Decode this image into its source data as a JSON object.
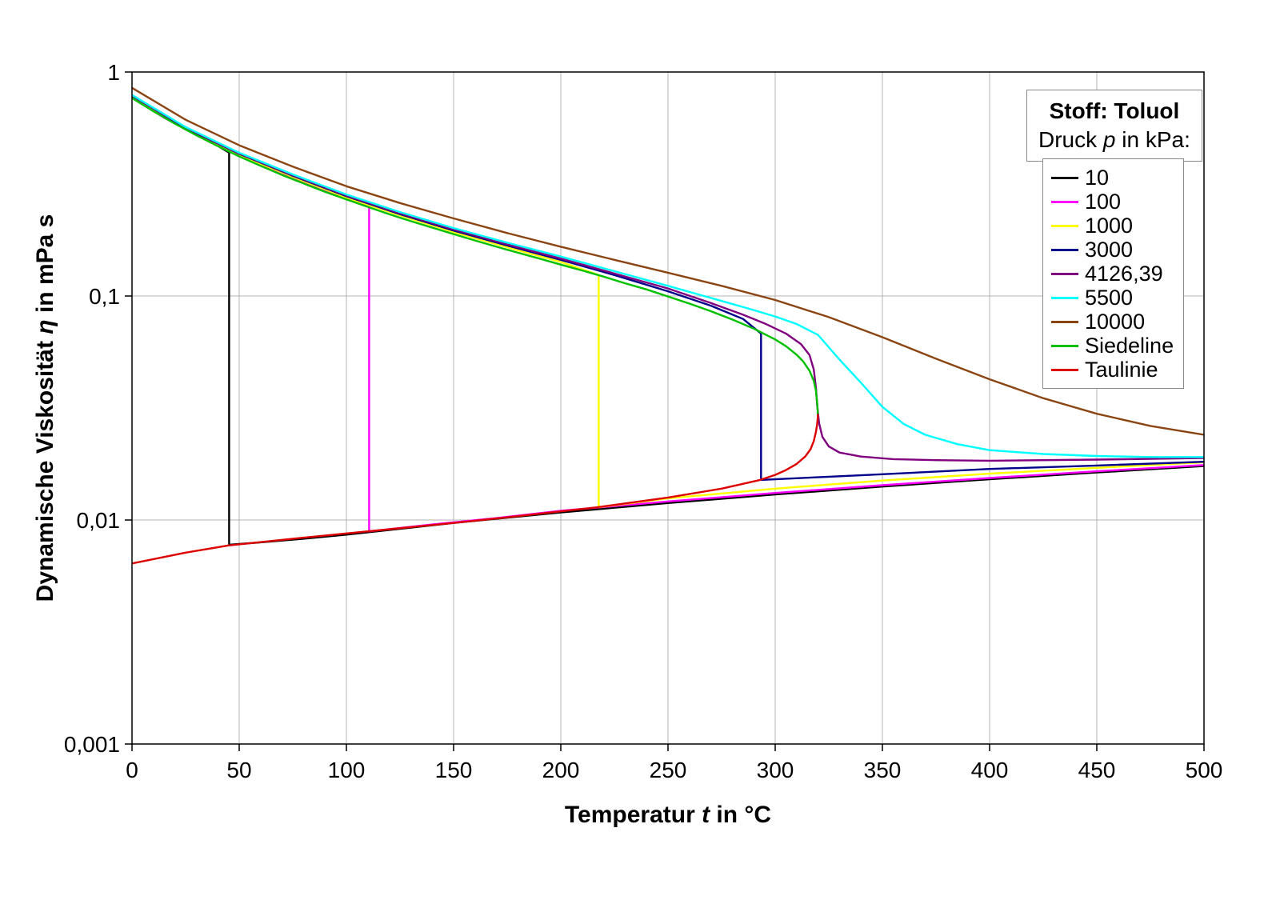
{
  "page": {
    "background": "#ffffff"
  },
  "legend": {
    "title_line1": "Stoff: Toluol",
    "title_line2_segments": [
      {
        "text": "Druck "
      },
      {
        "text": "p",
        "italic": true
      },
      {
        "text": " in kPa:"
      }
    ]
  },
  "chart_data": {
    "type": "line",
    "title": "",
    "xlabel_segments": [
      {
        "text": "Temperatur "
      },
      {
        "text": "t",
        "italic": true
      },
      {
        "text": " in °C"
      }
    ],
    "ylabel_segments": [
      {
        "text": "Dynamische Viskosität "
      },
      {
        "text": "η",
        "italic": true
      },
      {
        "text": " in mPa s"
      }
    ],
    "xlim": [
      0,
      500
    ],
    "ylim": [
      0.001,
      1
    ],
    "y_scale": "log",
    "x_ticks": [
      0,
      50,
      100,
      150,
      200,
      250,
      300,
      350,
      400,
      450,
      500
    ],
    "y_ticks": [
      {
        "v": 1,
        "label": "1"
      },
      {
        "v": 0.1,
        "label": "0,1"
      },
      {
        "v": 0.01,
        "label": "0,01"
      },
      {
        "v": 0.001,
        "label": "0,001"
      }
    ],
    "grid": true,
    "grid_color": "#b3b3b3",
    "frame_color": "#000000",
    "legend_position": "top-right",
    "series": [
      {
        "name": "10",
        "color": "#000000",
        "points": [
          [
            0,
            0.768
          ],
          [
            10,
            0.67
          ],
          [
            20,
            0.59
          ],
          [
            30,
            0.523
          ],
          [
            40,
            0.468
          ],
          [
            45.3,
            0.436
          ],
          [
            45.3,
            0.00775
          ],
          [
            60,
            0.00795
          ],
          [
            80,
            0.00825
          ],
          [
            100,
            0.0086
          ],
          [
            150,
            0.0097
          ],
          [
            200,
            0.0108
          ],
          [
            250,
            0.0119
          ],
          [
            300,
            0.013
          ],
          [
            350,
            0.0141
          ],
          [
            400,
            0.0152
          ],
          [
            450,
            0.0163
          ],
          [
            500,
            0.0174
          ]
        ]
      },
      {
        "name": "100",
        "color": "#ff00ff",
        "points": [
          [
            0,
            0.77
          ],
          [
            15,
            0.625
          ],
          [
            30,
            0.525
          ],
          [
            45,
            0.448
          ],
          [
            60,
            0.385
          ],
          [
            75,
            0.336
          ],
          [
            90,
            0.296
          ],
          [
            100,
            0.273
          ],
          [
            110.6,
            0.252
          ],
          [
            110.6,
            0.0089
          ],
          [
            140,
            0.00955
          ],
          [
            170,
            0.0102
          ],
          [
            200,
            0.011
          ],
          [
            250,
            0.0121
          ],
          [
            300,
            0.0132
          ],
          [
            350,
            0.0143
          ],
          [
            400,
            0.0154
          ],
          [
            450,
            0.0165
          ],
          [
            500,
            0.0176
          ]
        ]
      },
      {
        "name": "1000",
        "color": "#ffff00",
        "points": [
          [
            0,
            0.776
          ],
          [
            25,
            0.557
          ],
          [
            50,
            0.426
          ],
          [
            75,
            0.34
          ],
          [
            100,
            0.275
          ],
          [
            125,
            0.229
          ],
          [
            150,
            0.193
          ],
          [
            175,
            0.165
          ],
          [
            200,
            0.142
          ],
          [
            217.7,
            0.124
          ],
          [
            217.7,
            0.0114
          ],
          [
            250,
            0.0125
          ],
          [
            300,
            0.0138
          ],
          [
            350,
            0.015
          ],
          [
            400,
            0.0161
          ],
          [
            450,
            0.0171
          ],
          [
            500,
            0.0181
          ]
        ]
      },
      {
        "name": "3000",
        "color": "#00008b",
        "points": [
          [
            0,
            0.783
          ],
          [
            25,
            0.562
          ],
          [
            50,
            0.431
          ],
          [
            75,
            0.344
          ],
          [
            100,
            0.279
          ],
          [
            125,
            0.232
          ],
          [
            150,
            0.196
          ],
          [
            175,
            0.168
          ],
          [
            200,
            0.145
          ],
          [
            225,
            0.124
          ],
          [
            250,
            0.105
          ],
          [
            270,
            0.0905
          ],
          [
            285,
            0.079
          ],
          [
            293.4,
            0.068
          ],
          [
            293.4,
            0.0151
          ],
          [
            300,
            0.0152
          ],
          [
            325,
            0.0156
          ],
          [
            350,
            0.016
          ],
          [
            400,
            0.0169
          ],
          [
            450,
            0.0175
          ],
          [
            500,
            0.0182
          ]
        ]
      },
      {
        "name": "4126,39",
        "color": "#800080",
        "points": [
          [
            0,
            0.786
          ],
          [
            25,
            0.565
          ],
          [
            50,
            0.433
          ],
          [
            75,
            0.346
          ],
          [
            100,
            0.281
          ],
          [
            125,
            0.234
          ],
          [
            150,
            0.198
          ],
          [
            175,
            0.17
          ],
          [
            200,
            0.147
          ],
          [
            225,
            0.126
          ],
          [
            250,
            0.108
          ],
          [
            270,
            0.093
          ],
          [
            285,
            0.0825
          ],
          [
            295,
            0.0755
          ],
          [
            305,
            0.068
          ],
          [
            312,
            0.061
          ],
          [
            316,
            0.0545
          ],
          [
            318,
            0.047
          ],
          [
            319,
            0.039
          ],
          [
            319.6,
            0.0325
          ],
          [
            320.5,
            0.027
          ],
          [
            322,
            0.0235
          ],
          [
            325,
            0.0213
          ],
          [
            330,
            0.02
          ],
          [
            340,
            0.0192
          ],
          [
            355,
            0.0187
          ],
          [
            375,
            0.0185
          ],
          [
            400,
            0.0184
          ],
          [
            450,
            0.0186
          ],
          [
            500,
            0.0189
          ]
        ]
      },
      {
        "name": "5500",
        "color": "#00ffff",
        "points": [
          [
            0,
            0.79
          ],
          [
            25,
            0.568
          ],
          [
            50,
            0.436
          ],
          [
            75,
            0.349
          ],
          [
            100,
            0.284
          ],
          [
            125,
            0.237
          ],
          [
            150,
            0.201
          ],
          [
            175,
            0.173
          ],
          [
            200,
            0.15
          ],
          [
            225,
            0.129
          ],
          [
            250,
            0.111
          ],
          [
            275,
            0.095
          ],
          [
            290,
            0.0865
          ],
          [
            300,
            0.081
          ],
          [
            310,
            0.075
          ],
          [
            320,
            0.067
          ],
          [
            330,
            0.052
          ],
          [
            340,
            0.041
          ],
          [
            350,
            0.032
          ],
          [
            360,
            0.0268
          ],
          [
            370,
            0.024
          ],
          [
            385,
            0.0218
          ],
          [
            400,
            0.0205
          ],
          [
            425,
            0.0197
          ],
          [
            450,
            0.0193
          ],
          [
            475,
            0.0191
          ],
          [
            500,
            0.0191
          ]
        ]
      },
      {
        "name": "10000",
        "color": "#8b4513",
        "points": [
          [
            0,
            0.85
          ],
          [
            25,
            0.612
          ],
          [
            50,
            0.471
          ],
          [
            75,
            0.378
          ],
          [
            100,
            0.309
          ],
          [
            125,
            0.26
          ],
          [
            150,
            0.222
          ],
          [
            175,
            0.191
          ],
          [
            200,
            0.166
          ],
          [
            225,
            0.145
          ],
          [
            250,
            0.127
          ],
          [
            275,
            0.111
          ],
          [
            300,
            0.096
          ],
          [
            325,
            0.0805
          ],
          [
            350,
            0.0655
          ],
          [
            375,
            0.0525
          ],
          [
            400,
            0.0425
          ],
          [
            425,
            0.035
          ],
          [
            450,
            0.0298
          ],
          [
            475,
            0.0263
          ],
          [
            500,
            0.024
          ]
        ]
      },
      {
        "name": "Siedeline",
        "color": "#00c000",
        "points": [
          [
            0,
            0.765
          ],
          [
            10,
            0.668
          ],
          [
            20,
            0.588
          ],
          [
            30,
            0.522
          ],
          [
            40,
            0.467
          ],
          [
            50,
            0.42
          ],
          [
            60,
            0.381
          ],
          [
            70,
            0.347
          ],
          [
            80,
            0.318
          ],
          [
            90,
            0.292
          ],
          [
            100,
            0.27
          ],
          [
            110,
            0.25
          ],
          [
            120,
            0.232
          ],
          [
            130,
            0.216
          ],
          [
            140,
            0.202
          ],
          [
            150,
            0.189
          ],
          [
            160,
            0.177
          ],
          [
            170,
            0.166
          ],
          [
            180,
            0.156
          ],
          [
            190,
            0.147
          ],
          [
            200,
            0.138
          ],
          [
            210,
            0.13
          ],
          [
            220,
            0.122
          ],
          [
            230,
            0.114
          ],
          [
            240,
            0.107
          ],
          [
            250,
            0.0995
          ],
          [
            260,
            0.0925
          ],
          [
            270,
            0.0855
          ],
          [
            280,
            0.0785
          ],
          [
            290,
            0.0715
          ],
          [
            300,
            0.064
          ],
          [
            305,
            0.0597
          ],
          [
            310,
            0.0547
          ],
          [
            313,
            0.0511
          ],
          [
            316,
            0.0464
          ],
          [
            318,
            0.0418
          ],
          [
            319,
            0.0378
          ],
          [
            319.5,
            0.0338
          ],
          [
            319.8,
            0.0308
          ],
          [
            319.9,
            0.0295
          ]
        ]
      },
      {
        "name": "Taulinie",
        "color": "#dd0000",
        "points": [
          [
            0,
            0.0064
          ],
          [
            25,
            0.00715
          ],
          [
            45,
            0.0077
          ],
          [
            75,
            0.00825
          ],
          [
            110,
            0.0089
          ],
          [
            150,
            0.0097
          ],
          [
            180,
            0.0104
          ],
          [
            217,
            0.0114
          ],
          [
            250,
            0.0126
          ],
          [
            275,
            0.0138
          ],
          [
            293,
            0.0151
          ],
          [
            300,
            0.0159
          ],
          [
            305,
            0.0167
          ],
          [
            310,
            0.0178
          ],
          [
            314,
            0.0192
          ],
          [
            316.5,
            0.0207
          ],
          [
            318,
            0.0225
          ],
          [
            319,
            0.0247
          ],
          [
            319.5,
            0.0265
          ],
          [
            319.8,
            0.0283
          ],
          [
            319.9,
            0.0295
          ]
        ]
      }
    ]
  }
}
